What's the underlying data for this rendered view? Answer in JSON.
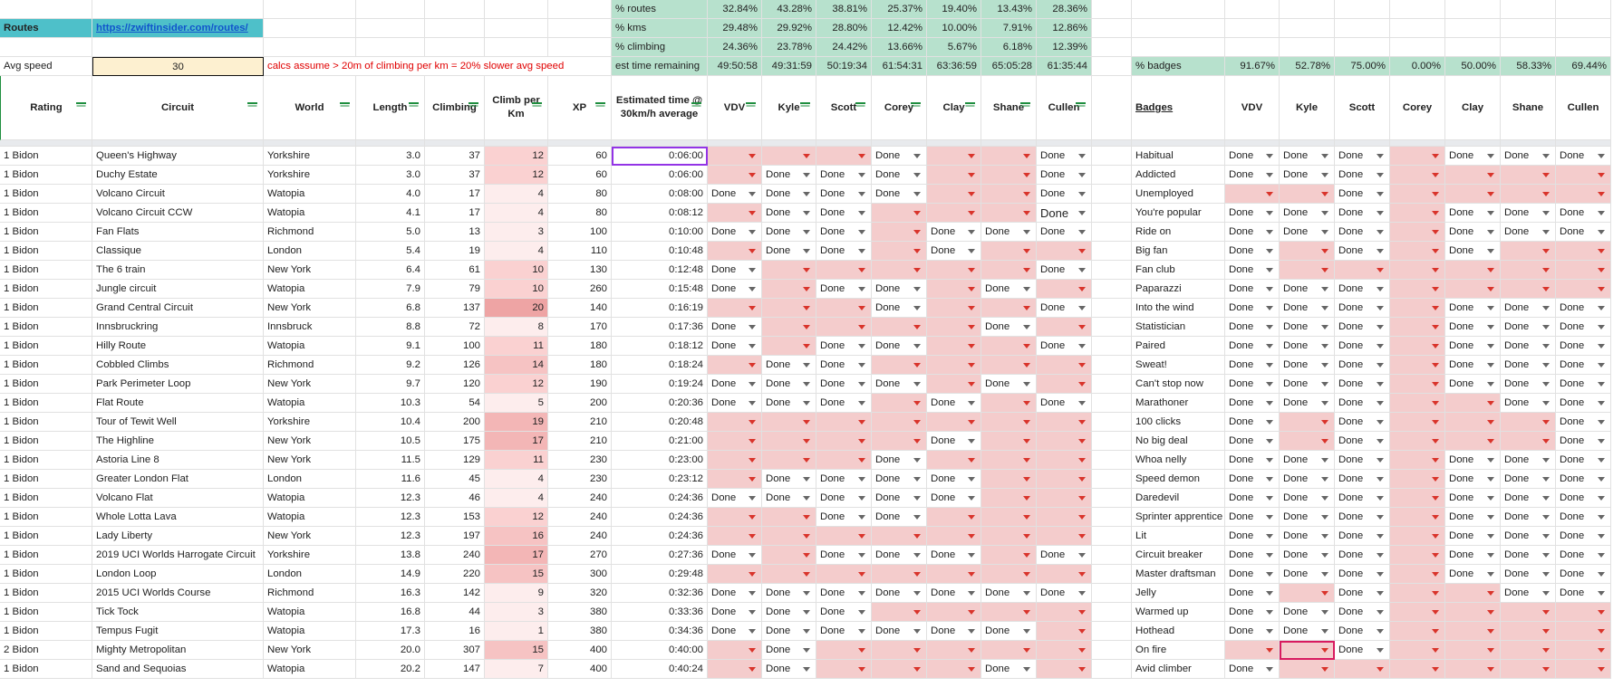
{
  "left": {
    "routes_label": "Routes",
    "routes_link": "https://zwiftinsider.com/routes/",
    "speed_label": "Avg speed",
    "speed_value": "30",
    "note": "calcs assume > 20m of climbing per km = 20% slower avg speed"
  },
  "stats": [
    {
      "label": "% routes",
      "values": [
        "32.84%",
        "43.28%",
        "38.81%",
        "25.37%",
        "19.40%",
        "13.43%",
        "28.36%"
      ]
    },
    {
      "label": "% kms",
      "values": [
        "29.48%",
        "29.92%",
        "28.80%",
        "12.42%",
        "10.00%",
        "7.91%",
        "12.86%"
      ]
    },
    {
      "label": "% climbing",
      "values": [
        "24.36%",
        "23.78%",
        "24.42%",
        "13.66%",
        "5.67%",
        "6.18%",
        "12.39%"
      ]
    },
    {
      "label": "est time remaining",
      "values": [
        "49:50:58",
        "49:31:59",
        "50:19:34",
        "61:54:31",
        "63:36:59",
        "65:05:28",
        "61:35:44"
      ]
    }
  ],
  "badge_stats": {
    "label": "% badges",
    "values": [
      "91.67%",
      "52.78%",
      "75.00%",
      "0.00%",
      "50.00%",
      "58.33%",
      "69.44%"
    ]
  },
  "headers": {
    "rating": "Rating",
    "circuit": "Circuit",
    "world": "World",
    "length": "Length",
    "climbing": "Climbing",
    "climb_per_km": "Climb per Km",
    "xp": "XP",
    "est_time": "Estimated time @ 30km/h average",
    "badges": "Badges"
  },
  "riders": [
    "VDV",
    "Kyle",
    "Scott",
    "Corey",
    "Clay",
    "Shane",
    "Cullen"
  ],
  "done_label": "Done",
  "routes": [
    {
      "rating": "1 Bidon",
      "circuit": "Queen's Highway",
      "world": "Yorkshire",
      "length": "3.0",
      "climbing": "37",
      "cpk": "12",
      "xp": "60",
      "time": "0:06:00",
      "status": [
        0,
        0,
        0,
        1,
        0,
        0,
        1
      ]
    },
    {
      "rating": "1 Bidon",
      "circuit": "Duchy Estate",
      "world": "Yorkshire",
      "length": "3.0",
      "climbing": "37",
      "cpk": "12",
      "xp": "60",
      "time": "0:06:00",
      "status": [
        0,
        1,
        1,
        1,
        0,
        0,
        1
      ]
    },
    {
      "rating": "1 Bidon",
      "circuit": "Volcano Circuit",
      "world": "Watopia",
      "length": "4.0",
      "climbing": "17",
      "cpk": "4",
      "xp": "80",
      "time": "0:08:00",
      "status": [
        1,
        1,
        1,
        1,
        0,
        0,
        1
      ]
    },
    {
      "rating": "1 Bidon",
      "circuit": "Volcano Circuit CCW",
      "world": "Watopia",
      "length": "4.1",
      "climbing": "17",
      "cpk": "4",
      "xp": "80",
      "time": "0:08:12",
      "status": [
        0,
        1,
        1,
        0,
        0,
        0,
        1
      ]
    },
    {
      "rating": "1 Bidon",
      "circuit": "Fan Flats",
      "world": "Richmond",
      "length": "5.0",
      "climbing": "13",
      "cpk": "3",
      "xp": "100",
      "time": "0:10:00",
      "status": [
        1,
        1,
        1,
        0,
        1,
        1,
        1
      ]
    },
    {
      "rating": "1 Bidon",
      "circuit": "Classique",
      "world": "London",
      "length": "5.4",
      "climbing": "19",
      "cpk": "4",
      "xp": "110",
      "time": "0:10:48",
      "status": [
        0,
        1,
        1,
        0,
        1,
        0,
        0
      ]
    },
    {
      "rating": "1 Bidon",
      "circuit": "The 6 train",
      "world": "New York",
      "length": "6.4",
      "climbing": "61",
      "cpk": "10",
      "xp": "130",
      "time": "0:12:48",
      "status": [
        1,
        0,
        0,
        0,
        0,
        0,
        1
      ]
    },
    {
      "rating": "1 Bidon",
      "circuit": "Jungle circuit",
      "world": "Watopia",
      "length": "7.9",
      "climbing": "79",
      "cpk": "10",
      "xp": "260",
      "time": "0:15:48",
      "status": [
        1,
        0,
        1,
        1,
        0,
        1,
        0
      ]
    },
    {
      "rating": "1 Bidon",
      "circuit": "Grand Central Circuit",
      "world": "New York",
      "length": "6.8",
      "climbing": "137",
      "cpk": "20",
      "xp": "140",
      "time": "0:16:19",
      "status": [
        0,
        0,
        0,
        1,
        0,
        0,
        1
      ]
    },
    {
      "rating": "1 Bidon",
      "circuit": "Innsbruckring",
      "world": "Innsbruck",
      "length": "8.8",
      "climbing": "72",
      "cpk": "8",
      "xp": "170",
      "time": "0:17:36",
      "status": [
        1,
        0,
        0,
        0,
        0,
        1,
        0
      ]
    },
    {
      "rating": "1 Bidon",
      "circuit": "Hilly Route",
      "world": "Watopia",
      "length": "9.1",
      "climbing": "100",
      "cpk": "11",
      "xp": "180",
      "time": "0:18:12",
      "status": [
        1,
        0,
        1,
        1,
        0,
        0,
        1
      ]
    },
    {
      "rating": "1 Bidon",
      "circuit": "Cobbled Climbs",
      "world": "Richmond",
      "length": "9.2",
      "climbing": "126",
      "cpk": "14",
      "xp": "180",
      "time": "0:18:24",
      "status": [
        0,
        1,
        1,
        0,
        0,
        0,
        0
      ]
    },
    {
      "rating": "1 Bidon",
      "circuit": "Park Perimeter Loop",
      "world": "New York",
      "length": "9.7",
      "climbing": "120",
      "cpk": "12",
      "xp": "190",
      "time": "0:19:24",
      "status": [
        1,
        1,
        1,
        1,
        0,
        1,
        0
      ]
    },
    {
      "rating": "1 Bidon",
      "circuit": "Flat Route",
      "world": "Watopia",
      "length": "10.3",
      "climbing": "54",
      "cpk": "5",
      "xp": "200",
      "time": "0:20:36",
      "status": [
        1,
        1,
        1,
        0,
        1,
        0,
        1
      ]
    },
    {
      "rating": "1 Bidon",
      "circuit": "Tour of Tewit Well",
      "world": "Yorkshire",
      "length": "10.4",
      "climbing": "200",
      "cpk": "19",
      "xp": "210",
      "time": "0:20:48",
      "status": [
        0,
        0,
        0,
        0,
        0,
        0,
        0
      ]
    },
    {
      "rating": "1 Bidon",
      "circuit": "The Highline",
      "world": "New York",
      "length": "10.5",
      "climbing": "175",
      "cpk": "17",
      "xp": "210",
      "time": "0:21:00",
      "status": [
        0,
        0,
        0,
        0,
        1,
        0,
        0
      ]
    },
    {
      "rating": "1 Bidon",
      "circuit": "Astoria Line 8",
      "world": "New York",
      "length": "11.5",
      "climbing": "129",
      "cpk": "11",
      "xp": "230",
      "time": "0:23:00",
      "status": [
        0,
        0,
        0,
        1,
        0,
        0,
        0
      ]
    },
    {
      "rating": "1 Bidon",
      "circuit": "Greater London Flat",
      "world": "London",
      "length": "11.6",
      "climbing": "45",
      "cpk": "4",
      "xp": "230",
      "time": "0:23:12",
      "status": [
        0,
        1,
        1,
        1,
        1,
        0,
        0
      ]
    },
    {
      "rating": "1 Bidon",
      "circuit": "Volcano Flat",
      "world": "Watopia",
      "length": "12.3",
      "climbing": "46",
      "cpk": "4",
      "xp": "240",
      "time": "0:24:36",
      "status": [
        1,
        1,
        1,
        1,
        1,
        0,
        0
      ]
    },
    {
      "rating": "1 Bidon",
      "circuit": "Whole Lotta Lava",
      "world": "Watopia",
      "length": "12.3",
      "climbing": "153",
      "cpk": "12",
      "xp": "240",
      "time": "0:24:36",
      "status": [
        0,
        0,
        1,
        1,
        0,
        0,
        0
      ]
    },
    {
      "rating": "1 Bidon",
      "circuit": "Lady Liberty",
      "world": "New York",
      "length": "12.3",
      "climbing": "197",
      "cpk": "16",
      "xp": "240",
      "time": "0:24:36",
      "status": [
        0,
        0,
        0,
        0,
        0,
        0,
        0
      ]
    },
    {
      "rating": "1 Bidon",
      "circuit": "2019 UCI Worlds Harrogate Circuit",
      "world": "Yorkshire",
      "length": "13.8",
      "climbing": "240",
      "cpk": "17",
      "xp": "270",
      "time": "0:27:36",
      "status": [
        1,
        0,
        1,
        1,
        1,
        0,
        1
      ]
    },
    {
      "rating": "1 Bidon",
      "circuit": "London Loop",
      "world": "London",
      "length": "14.9",
      "climbing": "220",
      "cpk": "15",
      "xp": "300",
      "time": "0:29:48",
      "status": [
        0,
        0,
        0,
        0,
        0,
        0,
        0
      ]
    },
    {
      "rating": "1 Bidon",
      "circuit": "2015 UCI Worlds Course",
      "world": "Richmond",
      "length": "16.3",
      "climbing": "142",
      "cpk": "9",
      "xp": "320",
      "time": "0:32:36",
      "status": [
        1,
        1,
        1,
        1,
        1,
        1,
        1
      ]
    },
    {
      "rating": "1 Bidon",
      "circuit": "Tick Tock",
      "world": "Watopia",
      "length": "16.8",
      "climbing": "44",
      "cpk": "3",
      "xp": "380",
      "time": "0:33:36",
      "status": [
        1,
        1,
        1,
        0,
        0,
        0,
        0
      ]
    },
    {
      "rating": "1 Bidon",
      "circuit": "Tempus Fugit",
      "world": "Watopia",
      "length": "17.3",
      "climbing": "16",
      "cpk": "1",
      "xp": "380",
      "time": "0:34:36",
      "status": [
        1,
        1,
        1,
        1,
        1,
        1,
        0
      ]
    },
    {
      "rating": "2 Bidon",
      "circuit": "Mighty Metropolitan",
      "world": "New York",
      "length": "20.0",
      "climbing": "307",
      "cpk": "15",
      "xp": "400",
      "time": "0:40:00",
      "status": [
        0,
        1,
        0,
        0,
        0,
        0,
        0
      ]
    },
    {
      "rating": "1 Bidon",
      "circuit": "Sand and Sequoias",
      "world": "Watopia",
      "length": "20.2",
      "climbing": "147",
      "cpk": "7",
      "xp": "400",
      "time": "0:40:24",
      "status": [
        0,
        1,
        0,
        0,
        0,
        1,
        0
      ]
    }
  ],
  "badges": [
    {
      "name": "Habitual",
      "status": [
        1,
        1,
        1,
        0,
        1,
        1,
        1
      ]
    },
    {
      "name": "Addicted",
      "status": [
        1,
        1,
        1,
        0,
        0,
        0,
        0
      ]
    },
    {
      "name": "Unemployed",
      "status": [
        0,
        0,
        1,
        0,
        0,
        0,
        0
      ]
    },
    {
      "name": "You're popular",
      "status": [
        1,
        1,
        1,
        0,
        1,
        1,
        1
      ]
    },
    {
      "name": "Ride on",
      "status": [
        1,
        1,
        1,
        0,
        1,
        1,
        1
      ]
    },
    {
      "name": "Big fan",
      "status": [
        1,
        0,
        1,
        0,
        1,
        0,
        0
      ]
    },
    {
      "name": "Fan club",
      "status": [
        1,
        0,
        0,
        0,
        0,
        0,
        0
      ]
    },
    {
      "name": "Paparazzi",
      "status": [
        1,
        1,
        1,
        0,
        0,
        0,
        0
      ]
    },
    {
      "name": "Into the wind",
      "status": [
        1,
        1,
        1,
        0,
        1,
        1,
        1
      ]
    },
    {
      "name": "Statistician",
      "status": [
        1,
        1,
        1,
        0,
        1,
        1,
        1
      ]
    },
    {
      "name": "Paired",
      "status": [
        1,
        1,
        1,
        0,
        1,
        1,
        1
      ]
    },
    {
      "name": "Sweat!",
      "status": [
        1,
        1,
        1,
        0,
        1,
        1,
        1
      ]
    },
    {
      "name": "Can't stop now",
      "status": [
        1,
        1,
        1,
        0,
        1,
        1,
        1
      ]
    },
    {
      "name": "Marathoner",
      "status": [
        1,
        1,
        1,
        0,
        0,
        1,
        1
      ]
    },
    {
      "name": "100 clicks",
      "status": [
        1,
        0,
        1,
        0,
        0,
        0,
        1
      ]
    },
    {
      "name": "No big deal",
      "status": [
        1,
        0,
        1,
        0,
        0,
        0,
        1
      ]
    },
    {
      "name": "Whoa nelly",
      "status": [
        1,
        1,
        1,
        0,
        1,
        1,
        1
      ]
    },
    {
      "name": "Speed demon",
      "status": [
        1,
        1,
        1,
        0,
        1,
        1,
        1
      ]
    },
    {
      "name": "Daredevil",
      "status": [
        1,
        1,
        1,
        0,
        1,
        1,
        1
      ]
    },
    {
      "name": "Sprinter apprentice",
      "status": [
        1,
        1,
        1,
        0,
        1,
        1,
        1
      ]
    },
    {
      "name": "Lit",
      "status": [
        1,
        1,
        1,
        0,
        1,
        1,
        1
      ]
    },
    {
      "name": "Circuit breaker",
      "status": [
        1,
        1,
        1,
        0,
        1,
        1,
        1
      ]
    },
    {
      "name": "Master draftsman",
      "status": [
        1,
        1,
        1,
        0,
        1,
        1,
        1
      ]
    },
    {
      "name": "Jelly",
      "status": [
        1,
        0,
        1,
        0,
        0,
        1,
        1
      ]
    },
    {
      "name": "Warmed up",
      "status": [
        1,
        1,
        1,
        0,
        0,
        0,
        0
      ]
    },
    {
      "name": "Hothead",
      "status": [
        1,
        1,
        1,
        0,
        0,
        0,
        0
      ]
    },
    {
      "name": "On fire",
      "status": [
        0,
        0,
        1,
        0,
        0,
        0,
        0
      ]
    },
    {
      "name": "Avid climber",
      "status": [
        1,
        0,
        0,
        0,
        0,
        0,
        0
      ]
    }
  ],
  "colors": {
    "stats_green": "#b7e1cd",
    "routes_teal": "#4ec0c9",
    "not_done_red": "#f4cccc",
    "speed_yellow": "#fdf0d0",
    "note_red": "#e00000"
  }
}
